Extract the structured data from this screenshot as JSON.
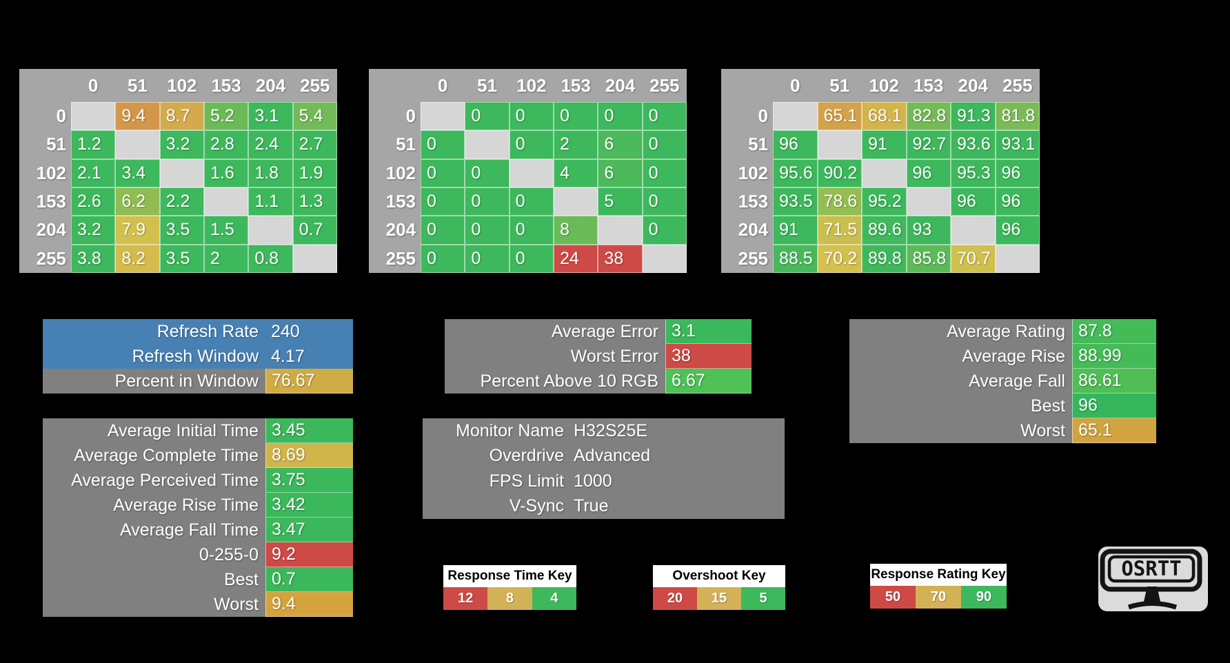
{
  "background": "#000000",
  "grid_levels": [
    "0",
    "51",
    "102",
    "153",
    "204",
    "255"
  ],
  "tables": [
    {
      "name": "response-times-grid",
      "scale": "time",
      "rows": [
        [
          null,
          9.4,
          8.7,
          5.2,
          3.1,
          5.4
        ],
        [
          1.2,
          null,
          3.2,
          2.8,
          2.4,
          2.7
        ],
        [
          2.1,
          3.4,
          null,
          1.6,
          1.8,
          1.9
        ],
        [
          2.6,
          6.2,
          2.2,
          null,
          1.1,
          1.3
        ],
        [
          3.2,
          7.9,
          3.5,
          1.5,
          null,
          0.7
        ],
        [
          3.8,
          8.2,
          3.5,
          2,
          0.8,
          null
        ]
      ]
    },
    {
      "name": "overshoot-grid",
      "scale": "overshoot",
      "rows": [
        [
          null,
          0,
          0,
          0,
          0,
          0
        ],
        [
          0,
          null,
          0,
          2,
          6,
          0
        ],
        [
          0,
          0,
          null,
          4,
          6,
          0
        ],
        [
          0,
          0,
          0,
          null,
          5,
          0
        ],
        [
          0,
          0,
          0,
          8,
          null,
          0
        ],
        [
          0,
          0,
          0,
          24,
          38,
          null
        ]
      ]
    },
    {
      "name": "response-rating-grid",
      "scale": "rating",
      "rows": [
        [
          null,
          65.1,
          68.1,
          82.8,
          91.3,
          81.8
        ],
        [
          96,
          null,
          91,
          92.7,
          93.6,
          93.1
        ],
        [
          95.6,
          90.2,
          null,
          96,
          95.3,
          96
        ],
        [
          93.5,
          78.6,
          95.2,
          null,
          96,
          96
        ],
        [
          91,
          71.5,
          89.6,
          93,
          null,
          96
        ],
        [
          88.5,
          70.2,
          89.8,
          85.8,
          70.7,
          null
        ]
      ]
    }
  ],
  "scales": {
    "time": {
      "green": 4,
      "yellow": 8,
      "red": 12
    },
    "overshoot": {
      "green": 5,
      "yellow": 15,
      "red": 20
    },
    "rating": {
      "green": 90,
      "yellow": 70,
      "red": 50
    }
  },
  "palette": {
    "green": "#3DB85C",
    "yellow": "#D5C04D",
    "red": "#CE4A46",
    "blue": "#4781B4",
    "gray_label": "#808080",
    "gray_header": "#A6A6A6",
    "gray_diagonal": "#D6D6D6",
    "gold": "#CFAC44"
  },
  "summary_boxes": [
    {
      "name": "refresh-stats",
      "rows": [
        {
          "label": "Refresh Rate",
          "value": "240",
          "label_bg": "#4781B4",
          "value_bg": "#4781B4"
        },
        {
          "label": "Refresh Window",
          "value": "4.17",
          "label_bg": "#4781B4",
          "value_bg": "#4781B4"
        },
        {
          "label": "Percent in Window",
          "value": "76.67",
          "label_bg": "#808080",
          "value_bg": "#CFAC44"
        }
      ]
    },
    {
      "name": "error-stats",
      "rows": [
        {
          "label": "Average Error",
          "value": "3.1",
          "label_bg": "#808080",
          "value_bg": "#3CB85C"
        },
        {
          "label": "Worst Error",
          "value": "38",
          "label_bg": "#808080",
          "value_bg": "#CE4A46"
        },
        {
          "label": "Percent Above 10 RGB",
          "value": "6.67",
          "label_bg": "#808080",
          "value_bg": "#4EC157"
        }
      ]
    },
    {
      "name": "rating-stats",
      "rows": [
        {
          "label": "Average Rating",
          "value": "87.8",
          "label_bg": "#808080",
          "value_bg": "#45BB58"
        },
        {
          "label": "Average Rise",
          "value": "88.99",
          "label_bg": "#808080",
          "value_bg": "#45BB58"
        },
        {
          "label": "Average Fall",
          "value": "86.61",
          "label_bg": "#808080",
          "value_bg": "#50BE55"
        },
        {
          "label": "Best",
          "value": "96",
          "label_bg": "#808080",
          "value_bg": "#35B65C"
        },
        {
          "label": "Worst",
          "value": "65.1",
          "label_bg": "#808080",
          "value_bg": "#D2A440"
        }
      ]
    },
    {
      "name": "time-stats",
      "rows": [
        {
          "label": "Average Initial Time",
          "value": "3.45",
          "label_bg": "#808080",
          "value_bg": "#3CB85C"
        },
        {
          "label": "Average Complete Time",
          "value": "8.69",
          "label_bg": "#808080",
          "value_bg": "#D0B54B"
        },
        {
          "label": "Average Perceived Time",
          "value": "3.75",
          "label_bg": "#808080",
          "value_bg": "#3CB85C"
        },
        {
          "label": "Average Rise Time",
          "value": "3.42",
          "label_bg": "#808080",
          "value_bg": "#3CB85C"
        },
        {
          "label": "Average Fall Time",
          "value": "3.47",
          "label_bg": "#808080",
          "value_bg": "#3CB85C"
        },
        {
          "label": "0-255-0",
          "value": "9.2",
          "label_bg": "#808080",
          "value_bg": "#CE4A46"
        },
        {
          "label": "Best",
          "value": "0.7",
          "label_bg": "#808080",
          "value_bg": "#3CB85C"
        },
        {
          "label": "Worst",
          "value": "9.4",
          "label_bg": "#808080",
          "value_bg": "#D5A33E"
        }
      ]
    }
  ],
  "monitor_box": {
    "rows": [
      {
        "label": "Monitor Name",
        "value": "H32S25E"
      },
      {
        "label": "Overdrive",
        "value": "Advanced"
      },
      {
        "label": "FPS Limit",
        "value": "1000"
      },
      {
        "label": "V-Sync",
        "value": "True"
      }
    ]
  },
  "keys": [
    {
      "name": "response-time-key",
      "title": "Response Time Key",
      "cells": [
        {
          "value": "12",
          "bg": "#CE4A46"
        },
        {
          "value": "8",
          "bg": "#D3B156"
        },
        {
          "value": "4",
          "bg": "#3DB85C"
        }
      ]
    },
    {
      "name": "overshoot-key",
      "title": "Overshoot Key",
      "cells": [
        {
          "value": "20",
          "bg": "#CE4A46"
        },
        {
          "value": "15",
          "bg": "#D3B156"
        },
        {
          "value": "5",
          "bg": "#3DB85C"
        }
      ]
    },
    {
      "name": "response-rating-key",
      "title": "Response Rating Key",
      "cells": [
        {
          "value": "50",
          "bg": "#CE4A46"
        },
        {
          "value": "70",
          "bg": "#D3B156"
        },
        {
          "value": "90",
          "bg": "#3DB85C"
        }
      ]
    }
  ],
  "logo": {
    "text": "OSRTT"
  }
}
